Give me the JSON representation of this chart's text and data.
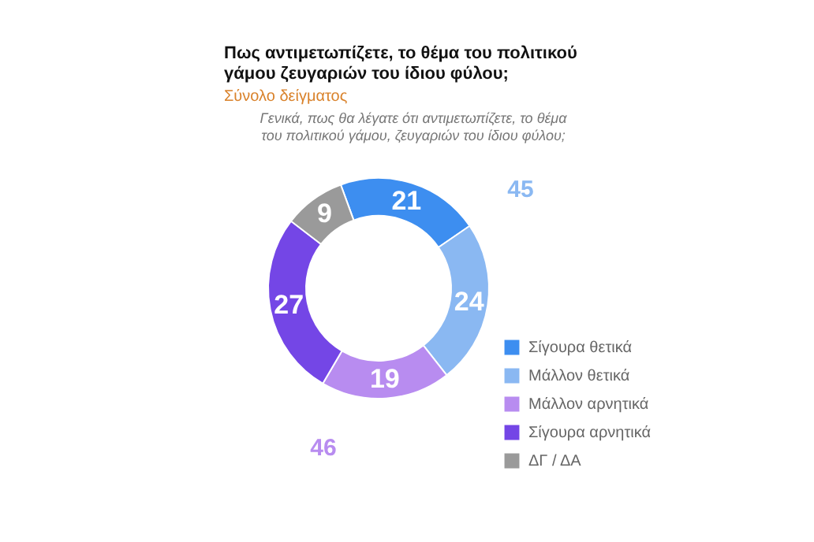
{
  "chart_data": {
    "type": "donut",
    "title": "Πως αντιμετωπίζετε, το θέμα του πολιτικού\nγάμου ζευγαριών του ίδιου φύλου;",
    "subtitle": "Σύνολο δείγματος",
    "annotations": [
      "Γενικά, πως θα λέγατε ότι αντιμετωπίζετε, το θέμα\nτου πολιτικού γάμου, ζευγαριών του ίδιου φύλου;",
      "45",
      "46"
    ],
    "categories": [
      "Σίγουρα θετικά",
      "Μάλλον θετικά",
      "Μάλλον αρνητικά",
      "Σίγουρα αρνητικά",
      "ΔΓ / ΔΑ"
    ],
    "values": [
      21,
      24,
      19,
      27,
      9
    ],
    "colors": [
      "#3d8ef0",
      "#8ab8f2",
      "#b88cf0",
      "#7446e6",
      "#9a9a9a"
    ],
    "data_labels": true,
    "legend": "bottom right"
  }
}
